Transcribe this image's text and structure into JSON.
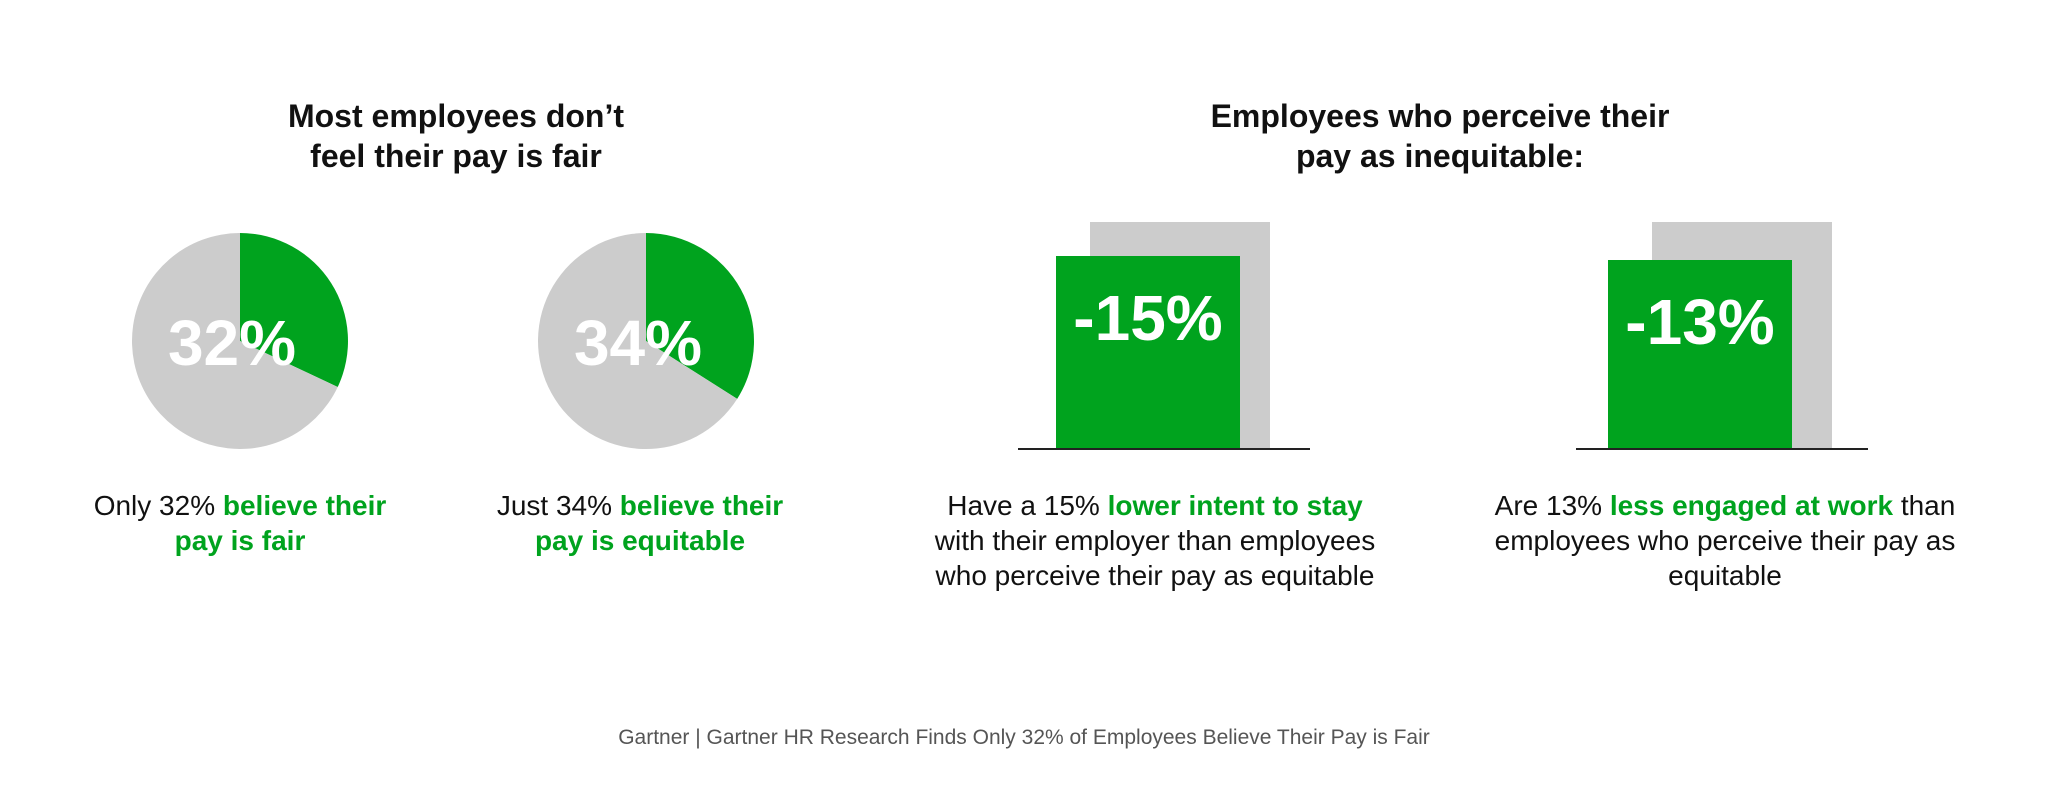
{
  "colors": {
    "accent": "#00a31e",
    "neutral": "#cccccc",
    "text": "#111111",
    "footer": "#555555"
  },
  "left_heading": [
    "Most employees don’t",
    "feel their pay is fair"
  ],
  "right_heading": [
    "Employees who perceive their",
    "pay as inequitable:"
  ],
  "chart_data": [
    {
      "type": "pie",
      "slices": [
        {
          "value": 32,
          "color": "#00a31e"
        },
        {
          "value": 68,
          "color": "#cccccc"
        }
      ],
      "label": "32%",
      "caption": {
        "plain": "Only 32% ",
        "highlight": "believe their pay is fair",
        "rest": ""
      }
    },
    {
      "type": "pie",
      "slices": [
        {
          "value": 34,
          "color": "#00a31e"
        },
        {
          "value": 66,
          "color": "#cccccc"
        }
      ],
      "label": "34%",
      "caption": {
        "plain": "Just 34% ",
        "highlight": "believe their pay is equitable",
        "rest": ""
      }
    },
    {
      "type": "bar",
      "values": [
        -15
      ],
      "label": "-15%",
      "caption": {
        "plain": "Have a 15% ",
        "highlight": "lower intent to stay",
        "rest": " with their employer than employees who perceive their pay as equitable"
      }
    },
    {
      "type": "bar",
      "values": [
        -13
      ],
      "label": "-13%",
      "caption": {
        "plain": "Are 13% ",
        "highlight": "less engaged at work",
        "rest": " than employees who perceive their pay as equitable"
      }
    }
  ],
  "footer": "Gartner | Gartner HR Research Finds Only 32% of Employees Believe Their Pay is Fair"
}
